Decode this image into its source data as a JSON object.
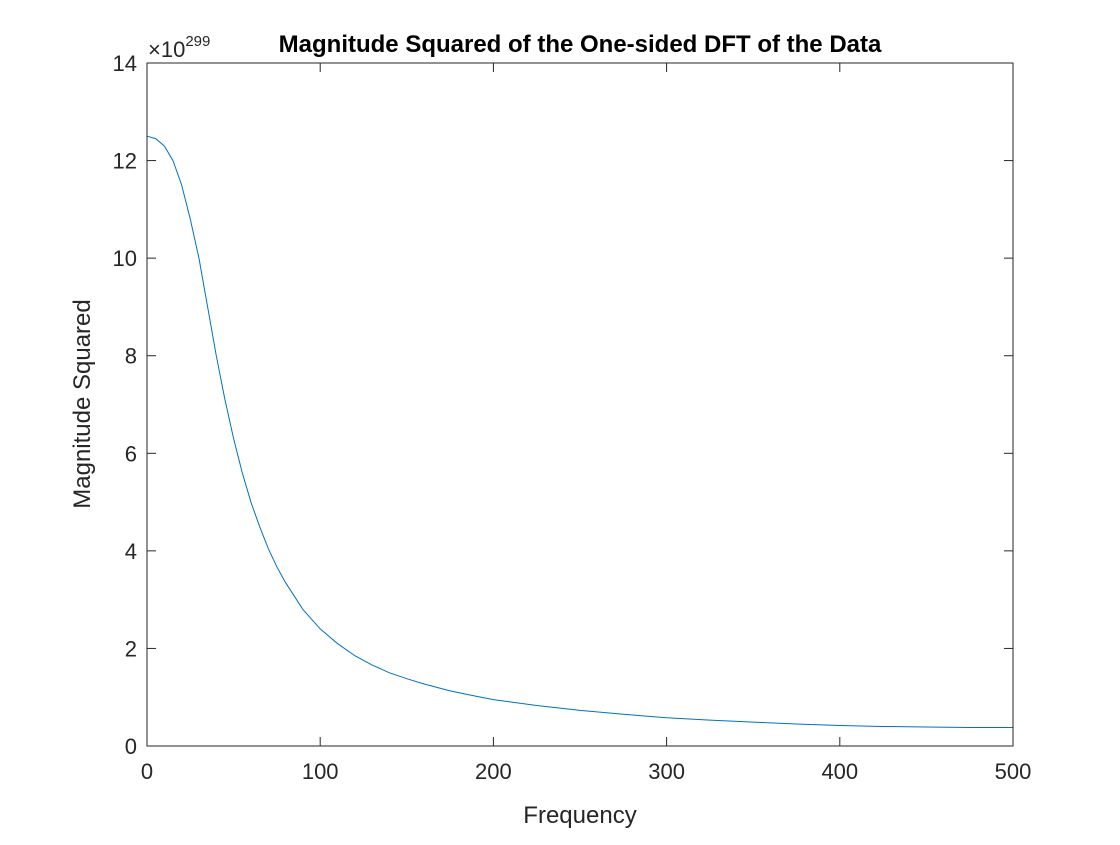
{
  "chart_data": {
    "type": "line",
    "title": "Magnitude Squared of the One-sided DFT of the Data",
    "xlabel": "Frequency",
    "ylabel": "Magnitude Squared",
    "y_exponent_prefix": "×10",
    "y_exponent": "299",
    "xlim": [
      0,
      500
    ],
    "ylim": [
      0,
      14
    ],
    "xticks": [
      0,
      100,
      200,
      300,
      400,
      500
    ],
    "yticks": [
      0,
      2,
      4,
      6,
      8,
      10,
      12,
      14
    ],
    "grid": false,
    "series_color": "#0072bd",
    "series": [
      {
        "x": [
          0,
          5,
          10,
          15,
          20,
          25,
          30,
          35,
          40,
          45,
          50,
          55,
          60,
          65,
          70,
          75,
          80,
          90,
          100,
          110,
          120,
          130,
          140,
          150,
          160,
          175,
          190,
          200,
          225,
          250,
          275,
          300,
          325,
          350,
          375,
          400,
          425,
          450,
          475,
          500
        ],
        "values": [
          12.5,
          12.45,
          12.3,
          12.0,
          11.5,
          10.8,
          10.0,
          9.0,
          8.0,
          7.1,
          6.3,
          5.6,
          5.0,
          4.5,
          4.05,
          3.67,
          3.35,
          2.8,
          2.4,
          2.1,
          1.85,
          1.66,
          1.5,
          1.38,
          1.27,
          1.13,
          1.02,
          0.95,
          0.83,
          0.73,
          0.65,
          0.58,
          0.53,
          0.49,
          0.45,
          0.42,
          0.4,
          0.39,
          0.38,
          0.38
        ]
      }
    ]
  }
}
